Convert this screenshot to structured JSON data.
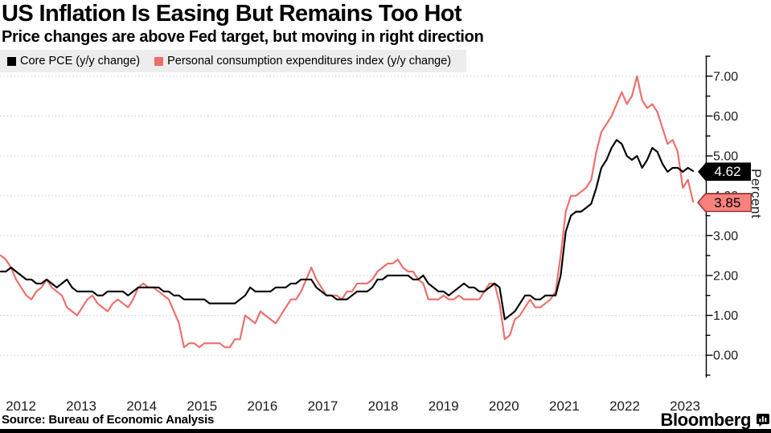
{
  "header": {
    "title": "US Inflation Is Easing But Remains Too Hot",
    "subtitle": "Price changes are above Fed target, but moving in right direction"
  },
  "legend": {
    "background": "#ededed",
    "items": [
      {
        "label": "Core PCE (y/y change)",
        "color": "#000000"
      },
      {
        "label": "Personal consumption expenditures index (y/y change)",
        "color": "#ec6e6a"
      }
    ]
  },
  "chart_data": {
    "type": "line",
    "frequency": "monthly",
    "x_start": "2012-01",
    "x_end": "2023-05",
    "x_tick_labels": [
      "2012",
      "2013",
      "2014",
      "2015",
      "2016",
      "2017",
      "2018",
      "2019",
      "2020",
      "2021",
      "2022",
      "2023"
    ],
    "y_tick_labels": [
      "0.00",
      "1.00",
      "2.00",
      "3.00",
      "4.00",
      "5.00",
      "6.00",
      "7.00"
    ],
    "ylabel": "Percent",
    "ylim": [
      -0.5,
      7.5
    ],
    "grid": "horizontal-dotted",
    "legend_position": "top-left",
    "series": [
      {
        "name": "Core PCE (y/y change)",
        "color": "#000000",
        "end_value": 4.62,
        "end_label": "4.62",
        "values": [
          2.1,
          2.1,
          2.2,
          2.1,
          2.0,
          1.9,
          1.9,
          1.8,
          1.8,
          1.9,
          1.8,
          1.7,
          1.8,
          1.9,
          1.7,
          1.6,
          1.6,
          1.6,
          1.6,
          1.5,
          1.5,
          1.6,
          1.6,
          1.6,
          1.6,
          1.5,
          1.6,
          1.7,
          1.7,
          1.7,
          1.7,
          1.7,
          1.6,
          1.6,
          1.5,
          1.5,
          1.4,
          1.4,
          1.4,
          1.4,
          1.4,
          1.3,
          1.3,
          1.3,
          1.3,
          1.3,
          1.3,
          1.4,
          1.5,
          1.7,
          1.6,
          1.6,
          1.6,
          1.6,
          1.7,
          1.7,
          1.7,
          1.8,
          1.8,
          1.9,
          1.9,
          1.9,
          1.7,
          1.6,
          1.5,
          1.5,
          1.4,
          1.4,
          1.4,
          1.5,
          1.6,
          1.6,
          1.6,
          1.7,
          1.9,
          1.9,
          2.0,
          2.0,
          2.0,
          2.0,
          2.0,
          1.9,
          1.9,
          2.0,
          1.8,
          1.7,
          1.6,
          1.6,
          1.5,
          1.6,
          1.7,
          1.8,
          1.7,
          1.7,
          1.6,
          1.6,
          1.7,
          1.8,
          1.7,
          0.9,
          1.0,
          1.1,
          1.3,
          1.5,
          1.5,
          1.4,
          1.4,
          1.5,
          1.5,
          1.5,
          2.0,
          3.1,
          3.5,
          3.6,
          3.6,
          3.7,
          3.8,
          4.2,
          4.7,
          4.9,
          5.2,
          5.4,
          5.3,
          5.0,
          4.9,
          5.0,
          4.7,
          4.9,
          5.2,
          5.1,
          4.8,
          4.6,
          4.7,
          4.7,
          4.6,
          4.7,
          4.62
        ]
      },
      {
        "name": "Personal consumption expenditures index (y/y change)",
        "color": "#ec6e6a",
        "end_value": 3.85,
        "end_label": "3.85",
        "values": [
          2.5,
          2.4,
          2.2,
          1.9,
          1.7,
          1.5,
          1.4,
          1.6,
          1.7,
          1.9,
          1.7,
          1.6,
          1.5,
          1.2,
          1.1,
          1.0,
          1.2,
          1.4,
          1.5,
          1.3,
          1.2,
          1.1,
          1.3,
          1.4,
          1.3,
          1.2,
          1.4,
          1.7,
          1.8,
          1.7,
          1.7,
          1.6,
          1.5,
          1.4,
          1.1,
          0.8,
          0.2,
          0.3,
          0.3,
          0.2,
          0.3,
          0.3,
          0.3,
          0.3,
          0.2,
          0.2,
          0.4,
          0.4,
          1.0,
          0.9,
          0.8,
          1.1,
          1.0,
          0.9,
          0.8,
          1.0,
          1.2,
          1.4,
          1.4,
          1.6,
          1.9,
          2.2,
          1.9,
          1.7,
          1.5,
          1.5,
          1.5,
          1.4,
          1.6,
          1.6,
          1.8,
          1.8,
          1.8,
          1.9,
          2.1,
          2.2,
          2.3,
          2.3,
          2.4,
          2.2,
          2.1,
          2.1,
          1.9,
          1.8,
          1.4,
          1.4,
          1.4,
          1.5,
          1.4,
          1.4,
          1.5,
          1.4,
          1.4,
          1.4,
          1.4,
          1.6,
          1.8,
          1.8,
          1.3,
          0.4,
          0.5,
          0.9,
          1.0,
          1.2,
          1.4,
          1.2,
          1.2,
          1.3,
          1.4,
          1.6,
          2.5,
          3.6,
          4.0,
          4.0,
          4.1,
          4.2,
          4.4,
          5.1,
          5.6,
          5.8,
          6.0,
          6.3,
          6.6,
          6.3,
          6.5,
          7.0,
          6.4,
          6.2,
          6.3,
          6.1,
          5.7,
          5.3,
          5.4,
          5.1,
          4.2,
          4.4,
          3.85
        ]
      }
    ]
  },
  "axis_badges": {
    "core": {
      "label": "4.62",
      "bg": "#000000",
      "text": "#ffffff"
    },
    "pce": {
      "label": "3.85",
      "bg": "#f8817e",
      "border": "#8e3b37",
      "text": "#000000"
    }
  },
  "footer": {
    "source": "Source: Bureau of Economic Analysis",
    "brand": "Bloomberg",
    "brand_icon": "bar-chart-bubble-icon",
    "bottom_bar_color": "#000000"
  }
}
